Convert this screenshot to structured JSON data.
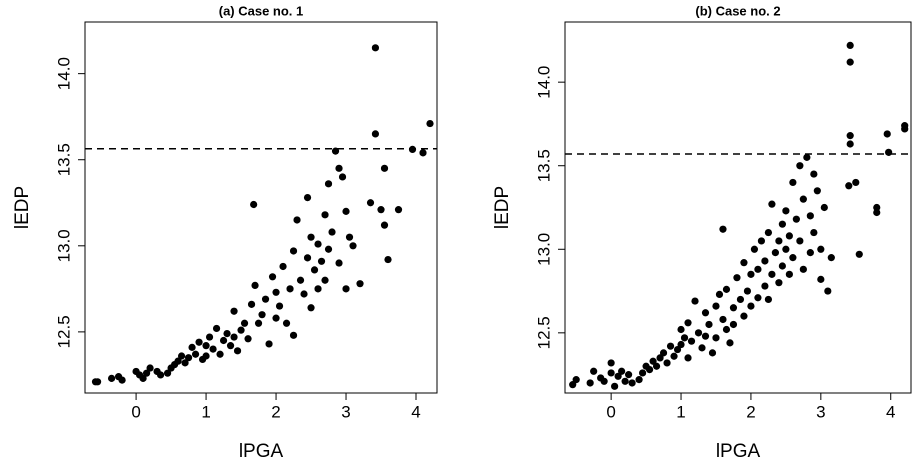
{
  "chart_data": [
    {
      "type": "scatter",
      "title": "(a) Case no. 1",
      "x_label": "lPGA",
      "y_label": "lEDP",
      "color": "#000000",
      "xlim": [
        -0.73,
        4.3
      ],
      "ylim": [
        12.145,
        14.3
      ],
      "xticks": [
        0,
        1,
        2,
        3,
        4
      ],
      "yticks": [
        12.5,
        {
          "value": 13,
          "label": "13.0"
        },
        13.5,
        {
          "value": 14,
          "label": "14.0"
        }
      ],
      "reference_line": {
        "value": 13.564,
        "style": "dashed"
      },
      "x": [
        -0.58,
        -0.55,
        -0.35,
        -0.25,
        -0.2,
        0.0,
        0.05,
        0.1,
        0.15,
        0.2,
        0.3,
        0.35,
        0.45,
        0.5,
        0.55,
        0.6,
        0.65,
        0.7,
        0.75,
        0.8,
        0.85,
        0.9,
        0.95,
        1.0,
        1.0,
        1.05,
        1.1,
        1.15,
        1.2,
        1.25,
        1.3,
        1.35,
        1.4,
        1.4,
        1.45,
        1.5,
        1.55,
        1.6,
        1.65,
        1.68,
        1.7,
        1.75,
        1.8,
        1.85,
        1.9,
        1.95,
        2.0,
        2.0,
        2.05,
        2.1,
        2.15,
        2.2,
        2.25,
        2.25,
        2.3,
        2.35,
        2.4,
        2.45,
        2.45,
        2.5,
        2.5,
        2.55,
        2.6,
        2.6,
        2.65,
        2.7,
        2.7,
        2.75,
        2.75,
        2.8,
        2.85,
        2.9,
        2.9,
        2.95,
        3.0,
        3.0,
        3.05,
        3.1,
        3.2,
        3.35,
        3.42,
        3.42,
        3.5,
        3.55,
        3.55,
        3.6,
        3.75,
        3.95,
        4.1,
        4.2
      ],
      "y": [
        12.21,
        12.21,
        12.23,
        12.24,
        12.22,
        12.27,
        12.25,
        12.23,
        12.26,
        12.29,
        12.27,
        12.25,
        12.26,
        12.29,
        12.31,
        12.33,
        12.36,
        12.32,
        12.35,
        12.41,
        12.37,
        12.44,
        12.34,
        12.36,
        12.42,
        12.47,
        12.4,
        12.52,
        12.37,
        12.45,
        12.49,
        12.42,
        12.62,
        12.47,
        12.39,
        12.51,
        12.55,
        12.46,
        12.66,
        13.24,
        12.77,
        12.55,
        12.6,
        12.69,
        12.43,
        12.82,
        12.58,
        12.73,
        12.65,
        12.88,
        12.55,
        12.75,
        12.97,
        12.48,
        13.15,
        12.8,
        12.72,
        13.28,
        12.93,
        12.64,
        13.05,
        12.86,
        13.01,
        12.75,
        12.91,
        13.18,
        12.8,
        13.36,
        12.98,
        13.08,
        13.55,
        13.45,
        12.9,
        13.4,
        13.2,
        12.75,
        13.05,
        13.0,
        12.78,
        13.25,
        14.15,
        13.65,
        13.21,
        13.45,
        13.12,
        12.92,
        13.21,
        13.56,
        13.54,
        13.71
      ]
    },
    {
      "type": "scatter",
      "title": "(b) Case no. 2",
      "x_label": "lPGA",
      "y_label": "lEDP",
      "color": "#000000",
      "xlim": [
        -0.66,
        4.29
      ],
      "ylim": [
        12.14,
        14.36
      ],
      "xticks": [
        0,
        1,
        2,
        3,
        4
      ],
      "yticks": [
        12.5,
        {
          "value": 13,
          "label": "13.0"
        },
        13.5,
        {
          "value": 14,
          "label": "14.0"
        }
      ],
      "reference_line": {
        "value": 13.57,
        "style": "dashed"
      },
      "x": [
        -0.55,
        -0.5,
        -0.3,
        -0.25,
        -0.15,
        -0.1,
        0.0,
        0.0,
        0.05,
        0.1,
        0.15,
        0.2,
        0.25,
        0.3,
        0.4,
        0.45,
        0.5,
        0.55,
        0.6,
        0.65,
        0.7,
        0.75,
        0.8,
        0.85,
        0.9,
        0.95,
        1.0,
        1.0,
        1.05,
        1.1,
        1.1,
        1.15,
        1.2,
        1.25,
        1.3,
        1.35,
        1.35,
        1.4,
        1.45,
        1.5,
        1.5,
        1.55,
        1.6,
        1.6,
        1.65,
        1.65,
        1.7,
        1.75,
        1.75,
        1.8,
        1.85,
        1.9,
        1.9,
        1.95,
        2.0,
        2.0,
        2.05,
        2.1,
        2.1,
        2.15,
        2.2,
        2.2,
        2.25,
        2.25,
        2.3,
        2.3,
        2.35,
        2.4,
        2.4,
        2.45,
        2.45,
        2.5,
        2.5,
        2.55,
        2.55,
        2.6,
        2.6,
        2.65,
        2.7,
        2.7,
        2.75,
        2.75,
        2.8,
        2.85,
        2.85,
        2.9,
        2.9,
        2.95,
        3.0,
        3.0,
        3.05,
        3.1,
        3.15,
        3.4,
        3.42,
        3.42,
        3.42,
        3.42,
        3.5,
        3.55,
        3.8,
        3.8,
        3.95,
        3.97,
        4.2,
        4.2
      ],
      "y": [
        12.19,
        12.22,
        12.2,
        12.27,
        12.23,
        12.21,
        12.32,
        12.26,
        12.18,
        12.24,
        12.27,
        12.21,
        12.25,
        12.2,
        12.22,
        12.26,
        12.3,
        12.28,
        12.33,
        12.3,
        12.35,
        12.38,
        12.32,
        12.42,
        12.36,
        12.4,
        12.52,
        12.43,
        12.47,
        12.35,
        12.56,
        12.45,
        12.69,
        12.5,
        12.41,
        12.62,
        12.48,
        12.55,
        12.38,
        12.66,
        12.47,
        12.73,
        13.12,
        12.58,
        12.52,
        12.76,
        12.44,
        12.65,
        12.55,
        12.83,
        12.7,
        12.6,
        12.92,
        12.75,
        12.66,
        12.85,
        13.0,
        12.71,
        12.88,
        13.05,
        12.78,
        12.93,
        13.1,
        12.7,
        12.85,
        13.27,
        12.98,
        12.8,
        13.05,
        13.15,
        12.9,
        13.0,
        13.23,
        12.85,
        13.08,
        13.4,
        12.95,
        13.18,
        13.5,
        13.05,
        13.3,
        12.88,
        13.55,
        13.2,
        12.98,
        13.45,
        13.1,
        13.35,
        13.0,
        12.82,
        13.25,
        12.75,
        12.95,
        13.38,
        14.22,
        14.12,
        13.68,
        13.63,
        13.4,
        12.97,
        13.25,
        13.22,
        13.69,
        13.58,
        13.74,
        13.72
      ]
    }
  ]
}
